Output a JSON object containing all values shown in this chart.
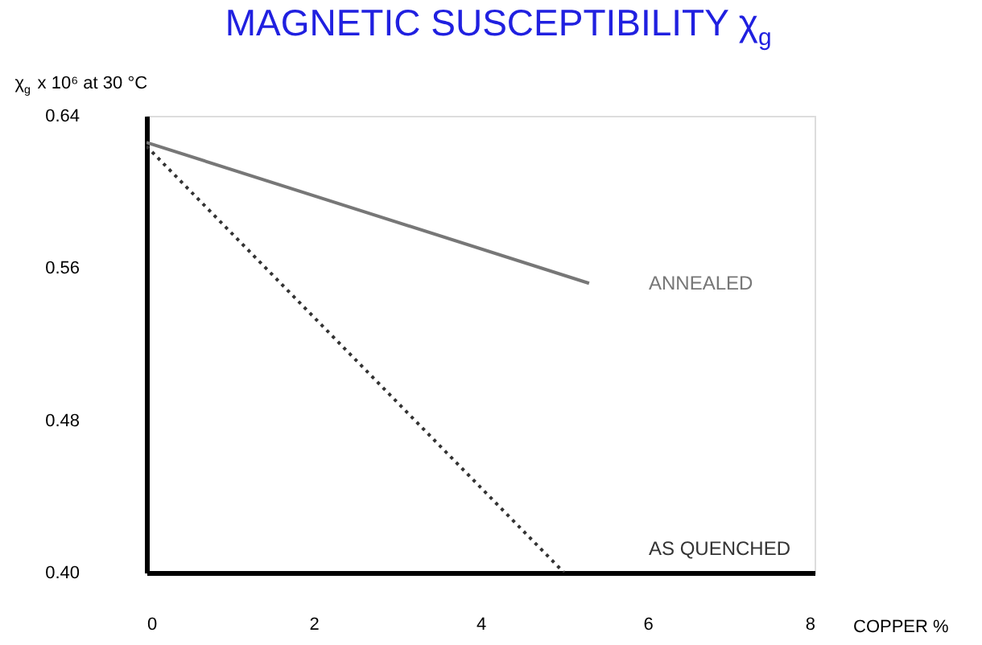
{
  "chart_data": {
    "type": "line",
    "title": "MAGNETIC SUSCEPTIBILITY χ$_{g}$",
    "ylabel": "χ$_{g}$ x 10⁶ at 30 °C",
    "xlabel": "COPPER %",
    "xlim": [
      0,
      8
    ],
    "xticks": [
      0,
      2,
      4,
      6,
      8
    ],
    "ylim": [
      0.4,
      0.64
    ],
    "yticks": [
      {
        "value": 0.4,
        "label": "0.40"
      },
      {
        "value": 0.48,
        "label": "0.48"
      },
      {
        "value": 0.56,
        "label": "0.56"
      },
      {
        "value": 0.64,
        "label": "0.64"
      }
    ],
    "grid": false,
    "series": [
      {
        "name": "ANNEALED",
        "color": "#777777",
        "line_style": "solid",
        "x": [
          0,
          5.3
        ],
        "values": [
          0.626,
          0.552
        ]
      },
      {
        "name": "AS QUENCHED",
        "color": "#333333",
        "line_style": "dotted",
        "x": [
          0,
          5.0
        ],
        "values": [
          0.624,
          0.4
        ]
      }
    ]
  }
}
